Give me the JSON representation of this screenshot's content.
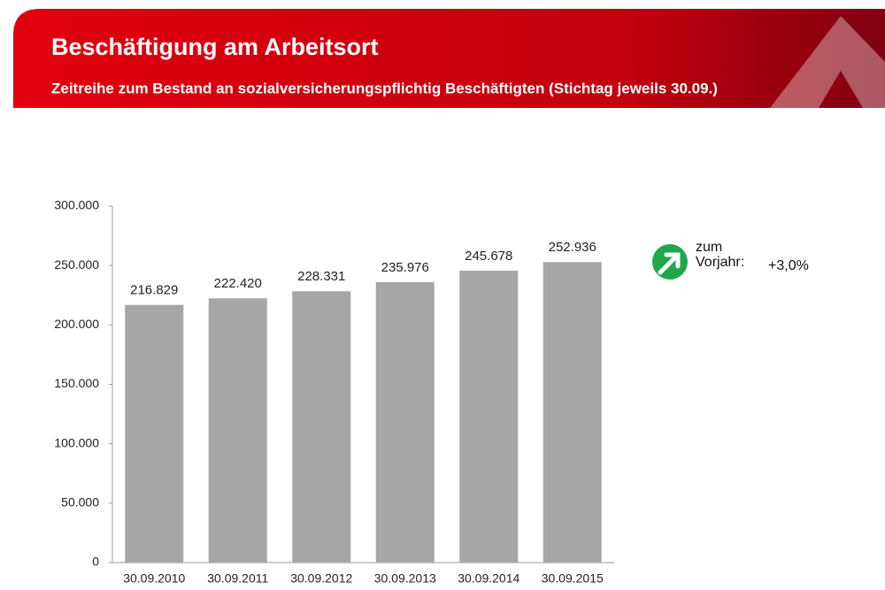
{
  "chart_data": {
    "type": "bar",
    "title": "Beschäftigung am Arbeitsort",
    "subtitle": "Zeitreihe zum Bestand an sozialversicherungspflichtig Beschäftigten (Stichtag jeweils 30.09.)",
    "categories": [
      "30.09.2010",
      "30.09.2011",
      "30.09.2012",
      "30.09.2013",
      "30.09.2014",
      "30.09.2015"
    ],
    "values": [
      216829,
      222420,
      228331,
      235976,
      245678,
      252936
    ],
    "value_labels": [
      "216.829",
      "222.420",
      "228.331",
      "235.976",
      "245.678",
      "252.936"
    ],
    "color": "#a6a6a6",
    "ylim": [
      0,
      300000
    ],
    "yticks": [
      0,
      {
        "value": 50000,
        "label": "50.000"
      },
      {
        "value": 100000,
        "label": "100.000"
      },
      {
        "value": 150000,
        "label": "150.000"
      },
      {
        "value": 200000,
        "label": "200.000"
      },
      {
        "value": 250000,
        "label": "250.000"
      },
      {
        "value": 300000,
        "label": "300.000"
      }
    ],
    "annotation": {
      "label": "zum Vorjahr:",
      "change": "+3,0%"
    }
  }
}
